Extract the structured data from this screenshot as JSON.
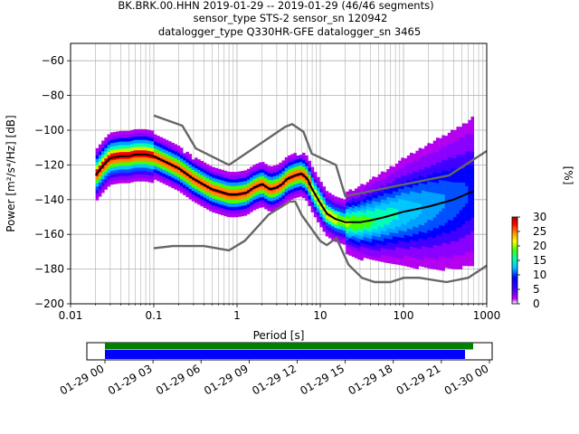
{
  "header": {
    "title_line1": "BK.BRK.00.HHN   2019-01-29 -- 2019-01-29  (46/46 segments)",
    "title_line2": "sensor_type STS-2 sensor_sn 120942",
    "title_line3": "datalogger_type Q330HR-GFE datalogger_sn 3465"
  },
  "colorbar": {
    "label": "[%]",
    "ticks": [
      "0",
      "5",
      "10",
      "15",
      "20",
      "25",
      "30"
    ],
    "range": [
      0,
      30
    ],
    "colors": [
      "#ffffff",
      "#b400f0",
      "#3f00ff",
      "#0000ff",
      "#00c8ff",
      "#00ffb4",
      "#46ff00",
      "#ffff00",
      "#ff8c00",
      "#ff0000",
      "#ad0000"
    ]
  },
  "timeline": {
    "tick_labels": [
      "01-29 00",
      "01-29 03",
      "01-29 06",
      "01-29 09",
      "01-29 12",
      "01-29 15",
      "01-29 18",
      "01-29 21",
      "01-30 00"
    ],
    "bar_colors": {
      "data": "#008000",
      "used": "#0000ff"
    }
  },
  "chart_data": {
    "type": "heatmap",
    "xlabel": "Period [s]",
    "ylabel": "Power [m²/s⁴/Hz] [dB]",
    "x_scale": "log",
    "xlim": [
      0.01,
      1000
    ],
    "ylim": [
      -200,
      -50
    ],
    "x_tick_labels": [
      "0.01",
      "0.1",
      "1",
      "10",
      "100",
      "1000"
    ],
    "y_tick_labels": [
      "−200",
      "−180",
      "−160",
      "−140",
      "−120",
      "−100",
      "−80",
      "−60"
    ],
    "grid": true,
    "model_color": "#666666",
    "mean_color": "#000000",
    "series": [
      {
        "name": "high noise model",
        "x": [
          0.1,
          0.22,
          0.32,
          0.8,
          3.8,
          4.6,
          6.3,
          7.9,
          15.4,
          20,
          354.8,
          1000
        ],
        "y": [
          -91.5,
          -97.4,
          -110.5,
          -120,
          -98,
          -96.5,
          -101,
          -113.5,
          -120,
          -138,
          -126,
          -112
        ]
      },
      {
        "name": "low noise model",
        "x": [
          0.1,
          0.17,
          0.4,
          0.8,
          1.24,
          2.4,
          4.3,
          5,
          6,
          10,
          12,
          15.6,
          21.9,
          31.6,
          45,
          70,
          101,
          154,
          328,
          600,
          1000
        ],
        "y": [
          -168,
          -166.7,
          -166.7,
          -169.2,
          -163.7,
          -148.6,
          -141.1,
          -141.1,
          -149,
          -163.8,
          -166.2,
          -162.1,
          -177.5,
          -185,
          -187.5,
          -187.5,
          -185,
          -185,
          -187.5,
          -185,
          -178
        ]
      },
      {
        "name": "mean",
        "x": [
          0.02,
          0.025,
          0.03,
          0.04,
          0.05,
          0.06,
          0.08,
          0.1,
          0.15,
          0.2,
          0.3,
          0.5,
          0.8,
          1.0,
          1.3,
          1.6,
          2.0,
          2.5,
          3.0,
          3.5,
          4.0,
          5.0,
          6.0,
          7.0,
          8.0,
          10,
          12,
          15,
          20,
          30,
          40,
          60,
          100,
          200,
          400,
          700
        ],
        "y": [
          -126,
          -120,
          -116,
          -115,
          -115,
          -114,
          -114,
          -115,
          -119,
          -122,
          -128,
          -134,
          -137,
          -137,
          -136,
          -133,
          -131,
          -134,
          -133,
          -131,
          -128,
          -126,
          -125,
          -128,
          -134,
          -142,
          -148,
          -151,
          -153,
          -153,
          -152,
          -150,
          -147,
          -144,
          -140,
          -135
        ]
      }
    ]
  }
}
